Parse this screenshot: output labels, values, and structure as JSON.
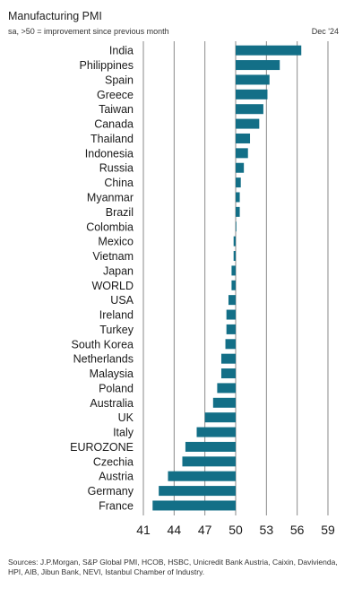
{
  "header": {
    "title": "Manufacturing PMI",
    "subtitle": "sa, >50 = improvement since previous month",
    "date": "Dec '24"
  },
  "footer": {
    "source": "Sources: J.P.Morgan, S&P Global PMI, HCOB, HSBC, Unicredit Bank Austria, Caixin, Daviviendа, HPI, AIB, Jibun Bank, NEVI, Istanbul Chamber of Industry."
  },
  "colors": {
    "bar": "#136f87",
    "grid": "#8a8a8a",
    "axis": "#333333"
  },
  "chart_data": {
    "type": "bar",
    "orientation": "horizontal",
    "title": "Manufacturing PMI",
    "subtitle": "sa, >50 = improvement since previous month",
    "baseline": 50,
    "xlim": [
      41,
      59
    ],
    "xticks": [
      41,
      44,
      47,
      50,
      53,
      56,
      59
    ],
    "grid": true,
    "categories": [
      "India",
      "Philippines",
      "Spain",
      "Greece",
      "Taiwan",
      "Canada",
      "Thailand",
      "Indonesia",
      "Russia",
      "China",
      "Myanmar",
      "Brazil",
      "Colombia",
      "Mexico",
      "Vietnam",
      "Japan",
      "WORLD",
      "USA",
      "Ireland",
      "Turkey",
      "South Korea",
      "Netherlands",
      "Malaysia",
      "Poland",
      "Australia",
      "UK",
      "Italy",
      "EUROZONE",
      "Czechia",
      "Austria",
      "Germany",
      "France"
    ],
    "values": [
      56.4,
      54.3,
      53.3,
      53.1,
      52.7,
      52.3,
      51.4,
      51.2,
      50.8,
      50.5,
      50.4,
      50.4,
      50.05,
      49.8,
      49.8,
      49.6,
      49.6,
      49.3,
      49.1,
      49.1,
      49.0,
      48.6,
      48.6,
      48.2,
      47.8,
      47.0,
      46.2,
      45.1,
      44.8,
      43.4,
      42.5,
      41.9
    ]
  }
}
